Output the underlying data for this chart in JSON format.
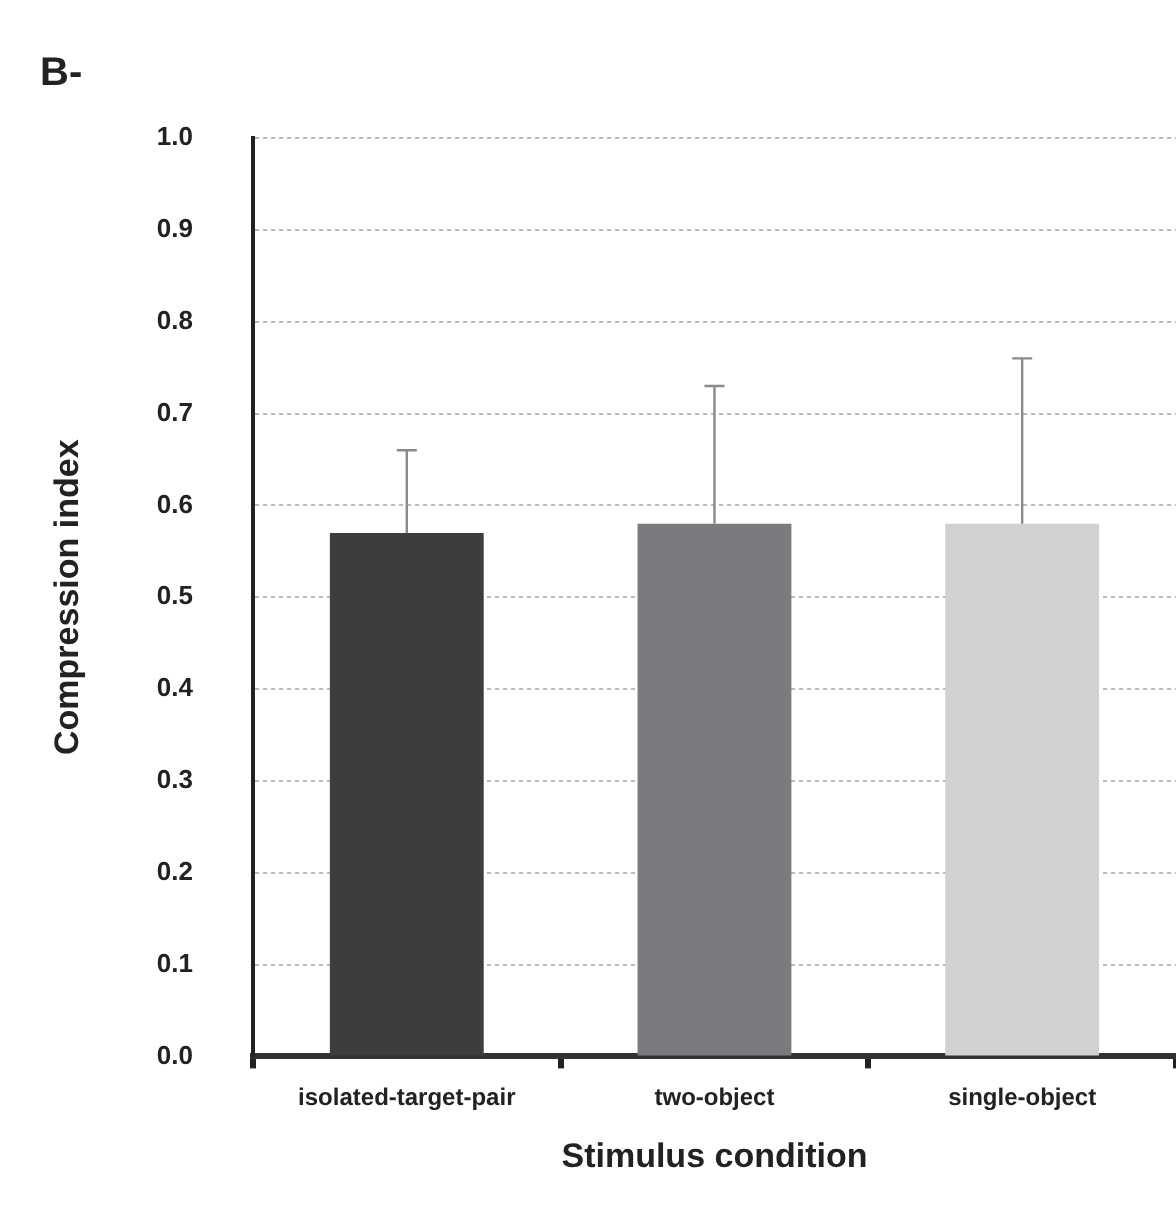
{
  "chart_data": {
    "type": "bar",
    "title": "B-",
    "xlabel": "Stimulus condition",
    "ylabel": "Compression index",
    "categories": [
      "isolated-target-pair",
      "two-object",
      "single-object"
    ],
    "values": [
      0.57,
      0.58,
      0.58
    ],
    "colors": [
      "#3d3d3d",
      "#7a7b7e",
      "#d0d1d3"
    ],
    "errors": [
      [
        0.57,
        0.66
      ],
      [
        0.58,
        0.73
      ],
      [
        0.58,
        0.76
      ]
    ],
    "ylim": [
      0,
      1
    ],
    "yticks": [
      {
        "value": 0,
        "label": "0.0"
      },
      {
        "value": 0.1,
        "label": "0.1"
      },
      {
        "value": 0.2,
        "label": "0.2"
      },
      {
        "value": 0.3,
        "label": "0.3"
      },
      {
        "value": 0.4,
        "label": "0.4"
      },
      {
        "value": 0.5,
        "label": "0.5"
      },
      {
        "value": 0.6,
        "label": "0.6"
      },
      {
        "value": 0.7,
        "label": "0.7"
      },
      {
        "value": 0.8,
        "label": "0.8"
      },
      {
        "value": 0.9,
        "label": "0.9"
      },
      {
        "value": 1,
        "label": "1.0"
      }
    ],
    "grid": "y",
    "legend": false
  }
}
